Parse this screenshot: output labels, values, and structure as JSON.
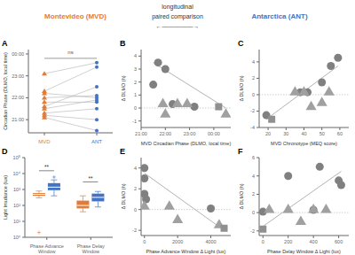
{
  "chart_data": [
    {
      "type": "line",
      "title": "A",
      "categories": [
        "MVD",
        "ANT"
      ],
      "colors": [
        "#E07B39",
        "#4472C4"
      ],
      "series": [
        {
          "color": "#BBBBBB",
          "values": [
            23.1,
            23.6
          ]
        },
        {
          "color": "#BBBBBB",
          "values": [
            22.3,
            23.4
          ]
        },
        {
          "color": "#BBBBBB",
          "values": [
            22.2,
            22.0
          ]
        },
        {
          "color": "#BBBBBB",
          "values": [
            22.0,
            22.1
          ]
        },
        {
          "color": "#BBBBBB",
          "values": [
            21.8,
            21.8
          ]
        },
        {
          "color": "#BBBBBB",
          "values": [
            21.6,
            22.5
          ]
        },
        {
          "color": "#BBBBBB",
          "values": [
            21.5,
            21.9
          ]
        },
        {
          "color": "#BBBBBB",
          "values": [
            21.3,
            21.5
          ]
        },
        {
          "color": "#BBBBBB",
          "values": [
            21.2,
            21.0
          ]
        },
        {
          "color": "#BBBBBB",
          "values": [
            21.1,
            20.5
          ]
        }
      ],
      "ylabel": "Circadian Phase (DLMO, local time)",
      "ylim": [
        20.4,
        24.2
      ],
      "yticks": [
        {
          "value": 21.0,
          "label": "21:00"
        },
        {
          "value": 22.0,
          "label": "22:00"
        },
        {
          "value": 23.0,
          "label": "23:00"
        },
        {
          "value": 24.0,
          "label": "00:00"
        }
      ],
      "annotations": [
        {
          "text": "Montevideo (MVD)",
          "color": "#E07B39"
        },
        {
          "text": "longitudinal",
          "color": "#333333"
        },
        {
          "text": "paired comparison",
          "color": "#333333"
        },
        {
          "text": "←—————→",
          "color": "#555555"
        },
        {
          "text": "Antarctica (ANT)",
          "color": "#4472C4"
        },
        {
          "text": "ns",
          "y": 23.8,
          "color": "#555555"
        }
      ]
    },
    {
      "type": "scatter",
      "title": "B",
      "xlabel": "MVD Circadian Phase (DLMO, local time)",
      "ylabel": "Δ DLMO (h)",
      "series": [
        {
          "type": "line",
          "color": "#A0A0A0",
          "x": [
            21.5,
            24.5
          ],
          "values": [
            3.5,
            0.0
          ]
        },
        {
          "type": "hline",
          "color": "#BBBBBB",
          "line_style": "dotted",
          "values": [
            0.0
          ]
        },
        {
          "type": "scatter",
          "marker": "circle",
          "color": "#808080",
          "x": [
            21.5,
            21.7,
            22.0,
            22.3,
            23.2
          ],
          "values": [
            1.8,
            3.5,
            3.0,
            0.3,
            0.1
          ]
        },
        {
          "type": "scatter",
          "marker": "triangle",
          "color": "#A0A0A0",
          "x": [
            21.9,
            22.0,
            22.5,
            22.9,
            24.5
          ],
          "values": [
            0.3,
            -0.5,
            0.3,
            0.3,
            -0.5
          ]
        },
        {
          "type": "scatter",
          "marker": "square",
          "color": "#909090",
          "x": [
            24.2
          ],
          "values": [
            0.1
          ]
        }
      ],
      "xlim": [
        21.0,
        24.7
      ],
      "xticks": [
        {
          "value": 21,
          "label": "21:00"
        },
        {
          "value": 22,
          "label": "22:00"
        },
        {
          "value": 23,
          "label": "23:00"
        },
        {
          "value": 24,
          "label": "00:00"
        }
      ],
      "ylim": [
        -1.5,
        4.5
      ],
      "yticks": [
        -1,
        0,
        1,
        2,
        3,
        4
      ]
    },
    {
      "type": "scatter",
      "title": "C",
      "xlabel": "MVD Chronotype (MEQ score)",
      "ylabel": "Δ DLMO (h)",
      "series": [
        {
          "type": "line",
          "color": "#A0A0A0",
          "x": [
            19,
            59
          ],
          "values": [
            -3.0,
            3.5
          ]
        },
        {
          "type": "hline",
          "color": "#BBBBBB",
          "line_style": "dotted",
          "values": [
            0.0
          ]
        },
        {
          "type": "scatter",
          "marker": "circle",
          "color": "#808080",
          "x": [
            19,
            38,
            42,
            50,
            55,
            59
          ],
          "values": [
            -2.5,
            0.3,
            0.3,
            1.5,
            3.5,
            4.5
          ]
        },
        {
          "type": "scatter",
          "marker": "triangle",
          "color": "#A0A0A0",
          "x": [
            35,
            40,
            44,
            50,
            54
          ],
          "values": [
            0.3,
            0.3,
            -1.5,
            -1.0,
            0.3
          ]
        },
        {
          "type": "scatter",
          "marker": "square",
          "color": "#909090",
          "x": [
            22
          ],
          "values": [
            -3.0
          ]
        }
      ],
      "xlim": [
        15,
        65
      ],
      "xticks": [
        20,
        30,
        40,
        50,
        60
      ],
      "ylim": [
        -4.0,
        5.5
      ],
      "yticks": [
        -4,
        -2,
        0,
        2,
        4
      ]
    },
    {
      "type": "box",
      "title": "D",
      "ylabel": "Light Irradiance (lux)",
      "log": "y",
      "categories": [
        "Phase Advance\nWindow",
        "Phase Delay\nWindow"
      ],
      "series": [
        {
          "color": "#E07B39",
          "boxes": [
            {
              "min": 300,
              "q1": 400,
              "median": 500,
              "q3": 600,
              "max": 800,
              "outliers": [
                2
              ]
            },
            {
              "min": 40,
              "q1": 65,
              "median": 100,
              "q3": 200,
              "max": 400,
              "outliers": []
            }
          ]
        },
        {
          "color": "#4472C4",
          "boxes": [
            {
              "min": 400,
              "q1": 900,
              "median": 1400,
              "q3": 2500,
              "max": 4000,
              "outliers": [
                6000
              ]
            },
            {
              "min": 80,
              "q1": 180,
              "median": 320,
              "q3": 550,
              "max": 750,
              "outliers": []
            }
          ]
        }
      ],
      "ylim": [
        1,
        100000
      ],
      "yticks": [
        {
          "value": 1,
          "label": "10⁰"
        },
        {
          "value": 10,
          "label": "10¹"
        },
        {
          "value": 100,
          "label": "10²"
        },
        {
          "value": 1000,
          "label": "10³"
        },
        {
          "value": 10000,
          "label": "10⁴"
        },
        {
          "value": 100000,
          "label": "10⁵"
        }
      ],
      "annotations": [
        {
          "text": "**",
          "y": 15000,
          "category": "Phase Advance\nWindow",
          "color": "#333333"
        },
        {
          "text": "**",
          "y": 3000,
          "category": "Phase Delay\nWindow",
          "color": "#333333"
        }
      ]
    },
    {
      "type": "scatter",
      "title": "E",
      "xlabel": "Phase Advance Window Δ Light (lux)",
      "ylabel": "Δ DLMO (h)",
      "series": [
        {
          "type": "line",
          "color": "#A0A0A0",
          "x": [
            0,
            4800
          ],
          "values": [
            3.5,
            -2.0
          ]
        },
        {
          "type": "hline",
          "color": "#BBBBBB",
          "line_style": "dotted",
          "values": [
            0.0
          ]
        },
        {
          "type": "scatter",
          "marker": "circle",
          "color": "#808080",
          "x": [
            0,
            0,
            0,
            100,
            4000
          ],
          "values": [
            4.0,
            3.0,
            1.5,
            1.0,
            0.1
          ]
        },
        {
          "type": "scatter",
          "marker": "triangle",
          "color": "#A0A0A0",
          "x": [
            0,
            1500,
            2000,
            4500
          ],
          "values": [
            0.3,
            0.3,
            -1.0,
            -1.5
          ]
        },
        {
          "type": "scatter",
          "marker": "square",
          "color": "#909090",
          "x": [
            4800
          ],
          "values": [
            -1.8
          ]
        }
      ],
      "xlim": [
        -200,
        5200
      ],
      "xticks": [
        0,
        2000,
        4000
      ],
      "ylim": [
        -2.5,
        5.0
      ],
      "yticks": [
        -2,
        0,
        2,
        4
      ]
    },
    {
      "type": "scatter",
      "title": "F",
      "xlabel": "Phase Delay Window Δ Light (lux)",
      "ylabel": "Δ DLMO (h)",
      "series": [
        {
          "type": "line",
          "color": "#A0A0A0",
          "x": [
            0,
            620
          ],
          "values": [
            -1.5,
            4.5
          ]
        },
        {
          "type": "hline",
          "color": "#BBBBBB",
          "line_style": "dotted",
          "values": [
            0.0
          ]
        },
        {
          "type": "scatter",
          "marker": "circle",
          "color": "#808080",
          "x": [
            0,
            200,
            400,
            450,
            600,
            620
          ],
          "values": [
            0.1,
            4.0,
            0.3,
            5.0,
            3.5,
            3.0
          ]
        },
        {
          "type": "scatter",
          "marker": "triangle",
          "color": "#A0A0A0",
          "x": [
            50,
            200,
            300,
            400,
            500
          ],
          "values": [
            0.3,
            0.3,
            -1.0,
            0.3,
            0.3
          ]
        },
        {
          "type": "scatter",
          "marker": "square",
          "color": "#909090",
          "x": [
            0
          ],
          "values": [
            -1.8
          ]
        }
      ],
      "xlim": [
        -30,
        680
      ],
      "xticks": [
        0,
        200,
        400,
        600
      ],
      "ylim": [
        -2.5,
        6.0
      ],
      "yticks": [
        -2,
        0,
        2,
        4,
        6
      ]
    }
  ]
}
